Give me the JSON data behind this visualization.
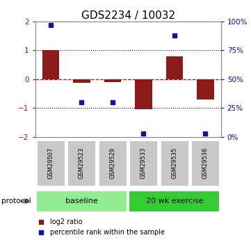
{
  "title": "GDS2234 / 10032",
  "samples": [
    "GSM29507",
    "GSM29523",
    "GSM29529",
    "GSM29533",
    "GSM29535",
    "GSM29536"
  ],
  "log2_ratio": [
    1.0,
    -0.12,
    -0.1,
    -1.05,
    0.8,
    -0.7
  ],
  "percentile_rank": [
    97,
    30,
    30,
    3,
    88,
    3
  ],
  "bar_color": "#8B1A1A",
  "square_color": "#1414A0",
  "ylim_left": [
    -2,
    2
  ],
  "ylim_right": [
    0,
    100
  ],
  "left_yticks": [
    -2,
    -1,
    0,
    1,
    2
  ],
  "right_yticks": [
    0,
    25,
    50,
    75,
    100
  ],
  "right_yticklabels": [
    "0%",
    "25%",
    "50%",
    "75%",
    "100%"
  ],
  "zero_line_color": "#CC0000",
  "dotted_line_color": "#000000",
  "protocol_groups": [
    {
      "label": "baseline",
      "samples": [
        0,
        1,
        2
      ],
      "color": "#90EE90"
    },
    {
      "label": "20 wk exercise",
      "samples": [
        3,
        4,
        5
      ],
      "color": "#33CC33"
    }
  ],
  "protocol_label": "protocol",
  "legend_items": [
    {
      "label": "log2 ratio",
      "color": "#8B1A1A"
    },
    {
      "label": "percentile rank within the sample",
      "color": "#1414A0"
    }
  ],
  "background_color": "#ffffff",
  "tick_label_color_left": "#CC0000",
  "tick_label_color_right": "#0000CC",
  "sample_box_color": "#C8C8C8",
  "title_fontsize": 11,
  "bar_width": 0.55
}
